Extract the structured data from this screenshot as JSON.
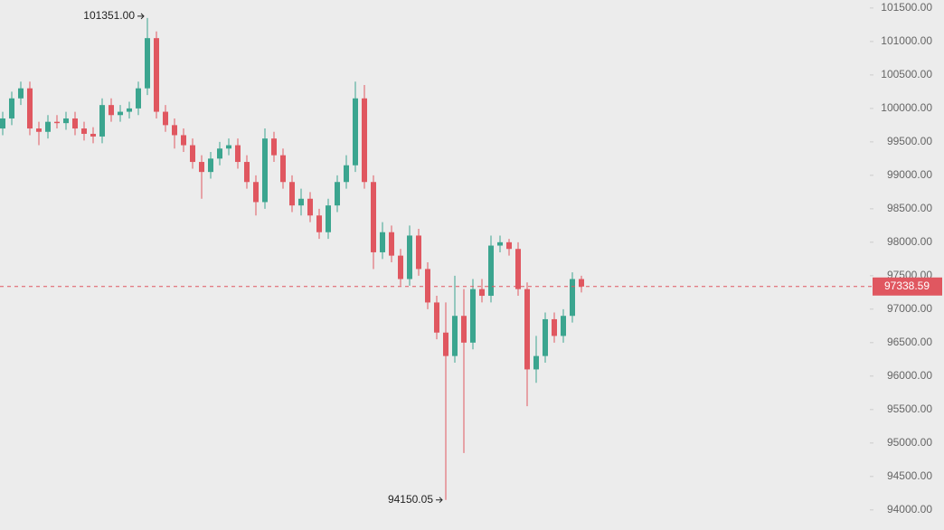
{
  "chart_data": {
    "type": "candlestick",
    "up_color": "#3ba58f",
    "down_color": "#e05760",
    "ylim": [
      93700,
      101620
    ],
    "yticks": [
      {
        "value": 94000,
        "label": "94000.00"
      },
      {
        "value": 94500,
        "label": "94500.00"
      },
      {
        "value": 95000,
        "label": "95000.00"
      },
      {
        "value": 95500,
        "label": "95500.00"
      },
      {
        "value": 96000,
        "label": "96000.00"
      },
      {
        "value": 96500,
        "label": "96500.00"
      },
      {
        "value": 97000,
        "label": "97000.00"
      },
      {
        "value": 97500,
        "label": "97500.00"
      },
      {
        "value": 98000,
        "label": "98000.00"
      },
      {
        "value": 98500,
        "label": "98500.00"
      },
      {
        "value": 99000,
        "label": "99000.00"
      },
      {
        "value": 99500,
        "label": "99500.00"
      },
      {
        "value": 100000,
        "label": "100000.00"
      },
      {
        "value": 100500,
        "label": "100500.00"
      },
      {
        "value": 101000,
        "label": "101000.00"
      },
      {
        "value": 101500,
        "label": "101500.00"
      }
    ],
    "open": [
      99700,
      99850,
      100150,
      100300,
      99700,
      99650,
      99800,
      99780,
      99850,
      99700,
      99620,
      99580,
      100050,
      99900,
      99950,
      100000,
      100300,
      101050,
      99950,
      99750,
      99600,
      99450,
      99200,
      99050,
      99250,
      99400,
      99450,
      99200,
      98900,
      98600,
      99550,
      99300,
      98900,
      98550,
      98650,
      98400,
      98150,
      98550,
      98900,
      99150,
      100150,
      98900,
      97850,
      98150,
      97800,
      97450,
      98100,
      97600,
      97100,
      96650,
      96300,
      96900,
      96500,
      97300,
      97200,
      97950,
      98000,
      97900,
      97300,
      96100,
      96300,
      96850,
      96600,
      96900,
      97450
    ],
    "high": [
      99950,
      100250,
      100400,
      100400,
      99800,
      99900,
      99900,
      99950,
      99950,
      99800,
      99720,
      100150,
      100150,
      100050,
      100100,
      100400,
      101351,
      101150,
      100050,
      99850,
      99700,
      99550,
      99300,
      99350,
      99500,
      99550,
      99550,
      99300,
      99000,
      99700,
      99650,
      99400,
      99000,
      98800,
      98750,
      98500,
      98650,
      99000,
      99300,
      100400,
      100350,
      99000,
      98300,
      98250,
      97900,
      98250,
      98200,
      97700,
      97200,
      97100,
      97500,
      97300,
      97450,
      97450,
      98100,
      98100,
      98050,
      98000,
      97400,
      96600,
      96950,
      96950,
      97000,
      97550,
      97500
    ],
    "low": [
      99600,
      99750,
      100050,
      99600,
      99450,
      99550,
      99700,
      99680,
      99600,
      99520,
      99480,
      99480,
      99800,
      99800,
      99850,
      99900,
      100200,
      99850,
      99650,
      99400,
      99350,
      99100,
      98650,
      98950,
      99150,
      99300,
      99100,
      98800,
      98400,
      98500,
      99200,
      98800,
      98450,
      98400,
      98300,
      98050,
      98050,
      98450,
      98800,
      99050,
      98800,
      97600,
      97750,
      97700,
      97350,
      97350,
      97500,
      97000,
      96550,
      94150.05,
      96200,
      94850,
      96400,
      97100,
      97100,
      97850,
      97800,
      97200,
      95550,
      95900,
      96200,
      96500,
      96500,
      96800,
      97250
    ],
    "close": [
      99850,
      100150,
      100300,
      99700,
      99650,
      99800,
      99780,
      99850,
      99700,
      99620,
      99580,
      100050,
      99900,
      99950,
      100000,
      100300,
      101050,
      99950,
      99750,
      99600,
      99450,
      99200,
      99050,
      99250,
      99400,
      99450,
      99200,
      98900,
      98600,
      99550,
      99300,
      98900,
      98550,
      98650,
      98400,
      98150,
      98550,
      98900,
      99150,
      100150,
      98900,
      97850,
      98150,
      97800,
      97450,
      98100,
      97600,
      97100,
      96650,
      96300,
      96900,
      96500,
      97300,
      97200,
      97950,
      98000,
      97900,
      97300,
      96100,
      96300,
      96850,
      96600,
      96900,
      97450,
      97338.59
    ],
    "high_annotation": {
      "value": 101351,
      "label": "101351.00"
    },
    "low_annotation": 94150.05,
    "last_price": 97338.59
  }
}
